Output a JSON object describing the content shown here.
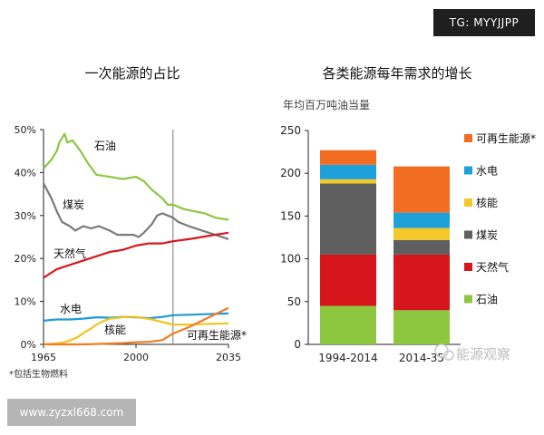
{
  "badges": {
    "telegram": "TG: MYYJJPP",
    "website": "www.zyzxl668.com"
  },
  "watermark": "能源观察",
  "chart_data": [
    {
      "type": "line",
      "title": "一次能源的占比",
      "footnote": "*包括生物燃料",
      "x_ticks": [
        "1965",
        "2000",
        "2035"
      ],
      "xlim": [
        1965,
        2035
      ],
      "projection_start": 2014,
      "y_ticks": [
        "0%",
        "10%",
        "20%",
        "30%",
        "40%",
        "50%"
      ],
      "ylim": [
        0,
        50
      ],
      "grid": false,
      "series": [
        {
          "name": "石油",
          "color": "#8dc63f",
          "x": [
            1965,
            1968,
            1970,
            1971,
            1973,
            1974,
            1976,
            1979,
            1982,
            1985,
            1990,
            1995,
            2000,
            2003,
            2006,
            2008,
            2010,
            2012,
            2014,
            2018,
            2022,
            2026,
            2030,
            2035
          ],
          "y": [
            41,
            43,
            45,
            47,
            49,
            47,
            47.5,
            45,
            42,
            39.5,
            39,
            38.5,
            39,
            38,
            36,
            35,
            34,
            32.5,
            32.5,
            31.5,
            31,
            30.5,
            29.5,
            29
          ]
        },
        {
          "name": "煤炭",
          "color": "#7a7a7a",
          "x": [
            1965,
            1968,
            1970,
            1972,
            1975,
            1977,
            1980,
            1983,
            1986,
            1990,
            1993,
            1996,
            1999,
            2001,
            2003,
            2006,
            2008,
            2010,
            2012,
            2014,
            2016,
            2020,
            2025,
            2030,
            2035
          ],
          "y": [
            37.5,
            34,
            31,
            28.5,
            27.5,
            26.5,
            27.5,
            27,
            27.5,
            26.5,
            25.5,
            25.5,
            25.5,
            25,
            26,
            28,
            30,
            30.5,
            30,
            29.5,
            28.5,
            27.5,
            26.5,
            25.5,
            24.5
          ]
        },
        {
          "name": "天然气",
          "color": "#d7161c",
          "x": [
            1965,
            1970,
            1975,
            1980,
            1985,
            1990,
            1995,
            2000,
            2005,
            2010,
            2014,
            2020,
            2025,
            2030,
            2035
          ],
          "y": [
            15.5,
            17.5,
            18.5,
            19.5,
            20.5,
            21.5,
            22,
            23,
            23.5,
            23.5,
            24,
            24.5,
            25,
            25.5,
            26
          ]
        },
        {
          "name": "水电",
          "color": "#1e9ad6",
          "x": [
            1965,
            1970,
            1975,
            1980,
            1985,
            1990,
            1995,
            2000,
            2005,
            2010,
            2014,
            2020,
            2025,
            2030,
            2035
          ],
          "y": [
            5.5,
            5.8,
            5.8,
            6.0,
            6.3,
            6.2,
            6.4,
            6.3,
            6.1,
            6.4,
            6.8,
            6.9,
            7.0,
            7.1,
            7.2
          ]
        },
        {
          "name": "核能",
          "color": "#f0c419",
          "x": [
            1965,
            1970,
            1973,
            1975,
            1978,
            1980,
            1983,
            1985,
            1988,
            1990,
            1993,
            1996,
            2000,
            2004,
            2006,
            2008,
            2010,
            2012,
            2014,
            2020,
            2025,
            2030,
            2035
          ],
          "y": [
            0,
            0.2,
            0.5,
            0.9,
            1.7,
            2.6,
            3.7,
            4.6,
            5.5,
            6.0,
            6.2,
            6.4,
            6.4,
            6.0,
            5.8,
            5.5,
            5.2,
            4.9,
            4.6,
            4.6,
            4.7,
            4.8,
            4.9
          ]
        },
        {
          "name": "可再生能源*",
          "color": "#ef7d22",
          "x": [
            1965,
            1980,
            1990,
            1995,
            2000,
            2005,
            2010,
            2014,
            2020,
            2025,
            2030,
            2035
          ],
          "y": [
            0,
            0,
            0.2,
            0.3,
            0.5,
            0.6,
            1.0,
            2.5,
            4.0,
            5.5,
            7.0,
            8.5
          ]
        }
      ]
    },
    {
      "type": "bar",
      "stacked": true,
      "title": "各类能源每年需求的增长",
      "ylabel": "年均百万吨油当量",
      "categories": [
        "1994-2014",
        "2014-35"
      ],
      "y_ticks": [
        "0",
        "50",
        "100",
        "150",
        "200",
        "250"
      ],
      "ylim": [
        0,
        250
      ],
      "grid": false,
      "legend_position": "right",
      "series": [
        {
          "name": "石油",
          "color": "#8dc63f",
          "values": [
            45,
            40
          ]
        },
        {
          "name": "天然气",
          "color": "#d7161c",
          "values": [
            60,
            65
          ]
        },
        {
          "name": "煤炭",
          "color": "#5f5f5f",
          "values": [
            83,
            17
          ]
        },
        {
          "name": "核能",
          "color": "#f5c829",
          "values": [
            5,
            14
          ]
        },
        {
          "name": "水电",
          "color": "#1ea1da",
          "values": [
            17,
            18
          ]
        },
        {
          "name": "可再生能源*",
          "color": "#f26d21",
          "values": [
            17,
            54
          ]
        }
      ]
    }
  ]
}
